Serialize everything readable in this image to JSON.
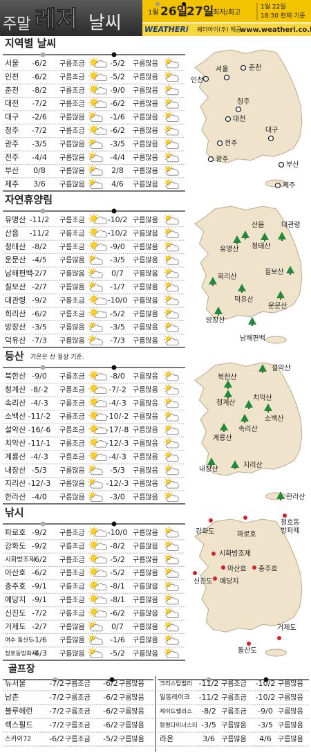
{
  "header": {
    "title": [
      "주말",
      "레저",
      "날씨"
    ],
    "month": "1월",
    "day1": "26일",
    "day2": "27일",
    "legend": "최저/최고",
    "updated": [
      "1월 22일",
      "18:30 현재 기준"
    ],
    "brand": "WEATHERi",
    "provider": "웨더아이(주) 제공",
    "url": "www.weatheri.co.kr"
  },
  "sections": [
    {
      "title": "지역별 날씨",
      "rows": [
        [
          "서울",
          "-6/2",
          "구름조금",
          "-5/2",
          "구름많음"
        ],
        [
          "인천",
          "-6/2",
          "구름조금",
          "-5/2",
          "구름많음"
        ],
        [
          "춘천",
          "-8/2",
          "구름조금",
          "-9/0",
          "구름많음"
        ],
        [
          "대전",
          "-7/2",
          "구름조금",
          "-6/2",
          "구름많음"
        ],
        [
          "대구",
          "-2/6",
          "구름많음",
          "-1/6",
          "구름많음"
        ],
        [
          "청주",
          "-7/2",
          "구름조금",
          "-6/2",
          "구름많음"
        ],
        [
          "광주",
          "-3/5",
          "구름많음",
          "-3/5",
          "구름많음"
        ],
        [
          "전주",
          "-4/4",
          "구름많음",
          "-4/4",
          "구름많음"
        ],
        [
          "부산",
          "0/8",
          "구름많음",
          "2/8",
          "구름많음"
        ],
        [
          "제주",
          "3/6",
          "구름많음",
          "4/6",
          "구름많음"
        ]
      ],
      "map": [
        "서울",
        "춘천",
        "인천",
        "청주",
        "대전",
        "대구",
        "전주",
        "광주",
        "부산",
        "제주"
      ]
    },
    {
      "title": "자연휴양림",
      "rows": [
        [
          "유명산",
          "-11/2",
          "구름조금",
          "-10/2",
          "구름많음"
        ],
        [
          "산음",
          "-11/2",
          "구름조금",
          "-10/2",
          "구름많음"
        ],
        [
          "청태산",
          "-8/2",
          "구름조금",
          "-9/0",
          "구름많음"
        ],
        [
          "운문산",
          "-4/5",
          "구름많음",
          "-3/5",
          "구름많음"
        ],
        [
          "남해편백",
          "-2/7",
          "구름많음",
          "0/7",
          "구름많음"
        ],
        [
          "칠보산",
          "-2/7",
          "구름많음",
          "-1/7",
          "구름많음"
        ],
        [
          "대관령",
          "-9/2",
          "구름조금",
          "-10/0",
          "구름많음"
        ],
        [
          "희리산",
          "-6/2",
          "구름조금",
          "-5/2",
          "구름많음"
        ],
        [
          "방장산",
          "-3/5",
          "구름많음",
          "-3/5",
          "구름많음"
        ],
        [
          "덕유산",
          "-7/3",
          "구름많음",
          "-7/3",
          "구름많음"
        ]
      ],
      "map": [
        "산음",
        "대관령",
        "유명산",
        "청태산",
        "희리산",
        "칠보산",
        "덕유산",
        "운문산",
        "방장산",
        "남해편백"
      ]
    },
    {
      "title": "등산",
      "note": "기온은 산 정상 기준.",
      "rows": [
        [
          "북한산",
          "-9/0",
          "구름조금",
          "-8/0",
          "구름많음"
        ],
        [
          "청계산",
          "-8/-2",
          "구름조금",
          "-7/-2",
          "구름많음"
        ],
        [
          "속리산",
          "-4/-3",
          "구름조금",
          "-4/-3",
          "구름많음"
        ],
        [
          "소백산",
          "-11/-2",
          "구름조금",
          "-10/-2",
          "구름많음"
        ],
        [
          "설악산",
          "-16/-6",
          "구름조금",
          "-17/-8",
          "구름많음"
        ],
        [
          "치악산",
          "-11/-1",
          "구름조금",
          "-12/-3",
          "구름많음"
        ],
        [
          "계룡산",
          "-4/-3",
          "구름조금",
          "-4/-3",
          "구름많음"
        ],
        [
          "내장산",
          "-5/3",
          "구름많음",
          "-5/3",
          "구름많음"
        ],
        [
          "지리산",
          "-12/-3",
          "구름많음",
          "-12/-3",
          "구름많음"
        ],
        [
          "한라산",
          "-4/0",
          "구름많음",
          "-3/0",
          "구름많음"
        ]
      ],
      "map": [
        "설악산",
        "북한산",
        "치악산",
        "청계산",
        "소백산",
        "속리산",
        "계룡산",
        "지리산",
        "내장산",
        "한라산"
      ]
    },
    {
      "title": "낚시",
      "rows": [
        [
          "파로호",
          "-9/2",
          "구름조금",
          "-10/0",
          "구름많음"
        ],
        [
          "강화도",
          "-9/2",
          "구름조금",
          "-8/2",
          "구름많음"
        ],
        [
          "시화방조제",
          "-6/2",
          "구름조금",
          "-5/2",
          "구름많음"
        ],
        [
          "아산호",
          "-6/2",
          "구름조금",
          "-5/2",
          "구름많음"
        ],
        [
          "충주호",
          "-9/1",
          "구름조금",
          "-8/1",
          "구름많음"
        ],
        [
          "예당지",
          "-9/1",
          "구름조금",
          "-8/1",
          "구름많음"
        ],
        [
          "신진도",
          "-7/2",
          "구름조금",
          "-6/2",
          "구름많음"
        ],
        [
          "거제도",
          "-2/7",
          "구름많음",
          "0/7",
          "구름많음"
        ],
        [
          "여수 돌산도",
          "-1/6",
          "구름많음",
          "-1/6",
          "구름많음"
        ],
        [
          "청호동방파제",
          "-4/3",
          "구름많음",
          "-5/2",
          "구름많음"
        ]
      ],
      "map": [
        [
          "청호동",
          "방파제"
        ],
        "강화도",
        "파로호",
        "시화방조제",
        "아산호",
        "충주호",
        "신진도",
        "예당지",
        "거제도",
        "돌산도"
      ]
    }
  ],
  "golf": {
    "title": "골프장",
    "left": [
      [
        "뉴서울",
        "-7/2",
        "구름조금",
        "-6/2",
        "구름많음"
      ],
      [
        "남촌",
        "-7/2",
        "구름조금",
        "-6/2",
        "구름많음"
      ],
      [
        "블루헤런",
        "-7/2",
        "구름조금",
        "-6/2",
        "구름많음"
      ],
      [
        "렉스필드",
        "-7/2",
        "구름조금",
        "-6/2",
        "구름많음"
      ],
      [
        "스카이72",
        "-6/2",
        "구름조금",
        "-5/2",
        "구름많음"
      ]
    ],
    "right": [
      [
        "크리스탈밸리",
        "-11/2",
        "구름조금",
        "-10/2",
        "구름많음"
      ],
      [
        "일동레이크",
        "-11/2",
        "구름조금",
        "-10/2",
        "구름많음"
      ],
      [
        "제이드팰리스",
        "-8/2",
        "구름조금",
        "-9/0",
        "구름많음"
      ],
      [
        "함평다이너스티",
        "-3/5",
        "구름많음",
        "-3/5",
        "구름많음"
      ],
      [
        "라온",
        "3/6",
        "구름많음",
        "4/6",
        "구름많음"
      ]
    ]
  }
}
